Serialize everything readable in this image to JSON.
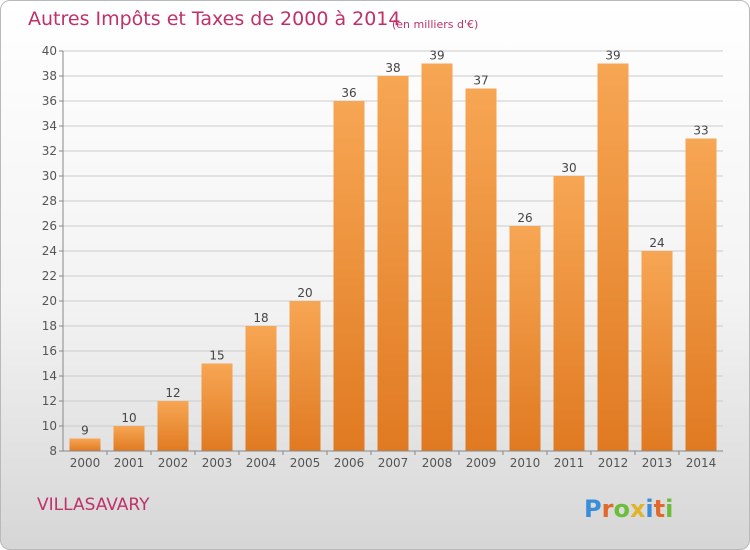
{
  "chart_data": {
    "type": "bar",
    "title": "Autres Impôts et Taxes de 2000 à 2014",
    "subtitle": "(en milliers d'€)",
    "categories": [
      "2000",
      "2001",
      "2002",
      "2003",
      "2004",
      "2005",
      "2006",
      "2007",
      "2008",
      "2009",
      "2010",
      "2011",
      "2012",
      "2013",
      "2014"
    ],
    "values": [
      9,
      10,
      12,
      15,
      18,
      20,
      36,
      38,
      39,
      37,
      26,
      30,
      39,
      24,
      33
    ],
    "ylim": [
      8,
      40
    ],
    "yticks": [
      8,
      10,
      12,
      14,
      16,
      18,
      20,
      22,
      24,
      26,
      28,
      30,
      32,
      34,
      36,
      38,
      40
    ],
    "grid": true,
    "colors": {
      "bar_top": "#f7a654",
      "bar_bottom": "#e07a22",
      "title": "#c0306a",
      "grid": "#cccccc",
      "text": "#555555"
    }
  },
  "commune": "VILLASAVARY",
  "brand": "Proxiti"
}
